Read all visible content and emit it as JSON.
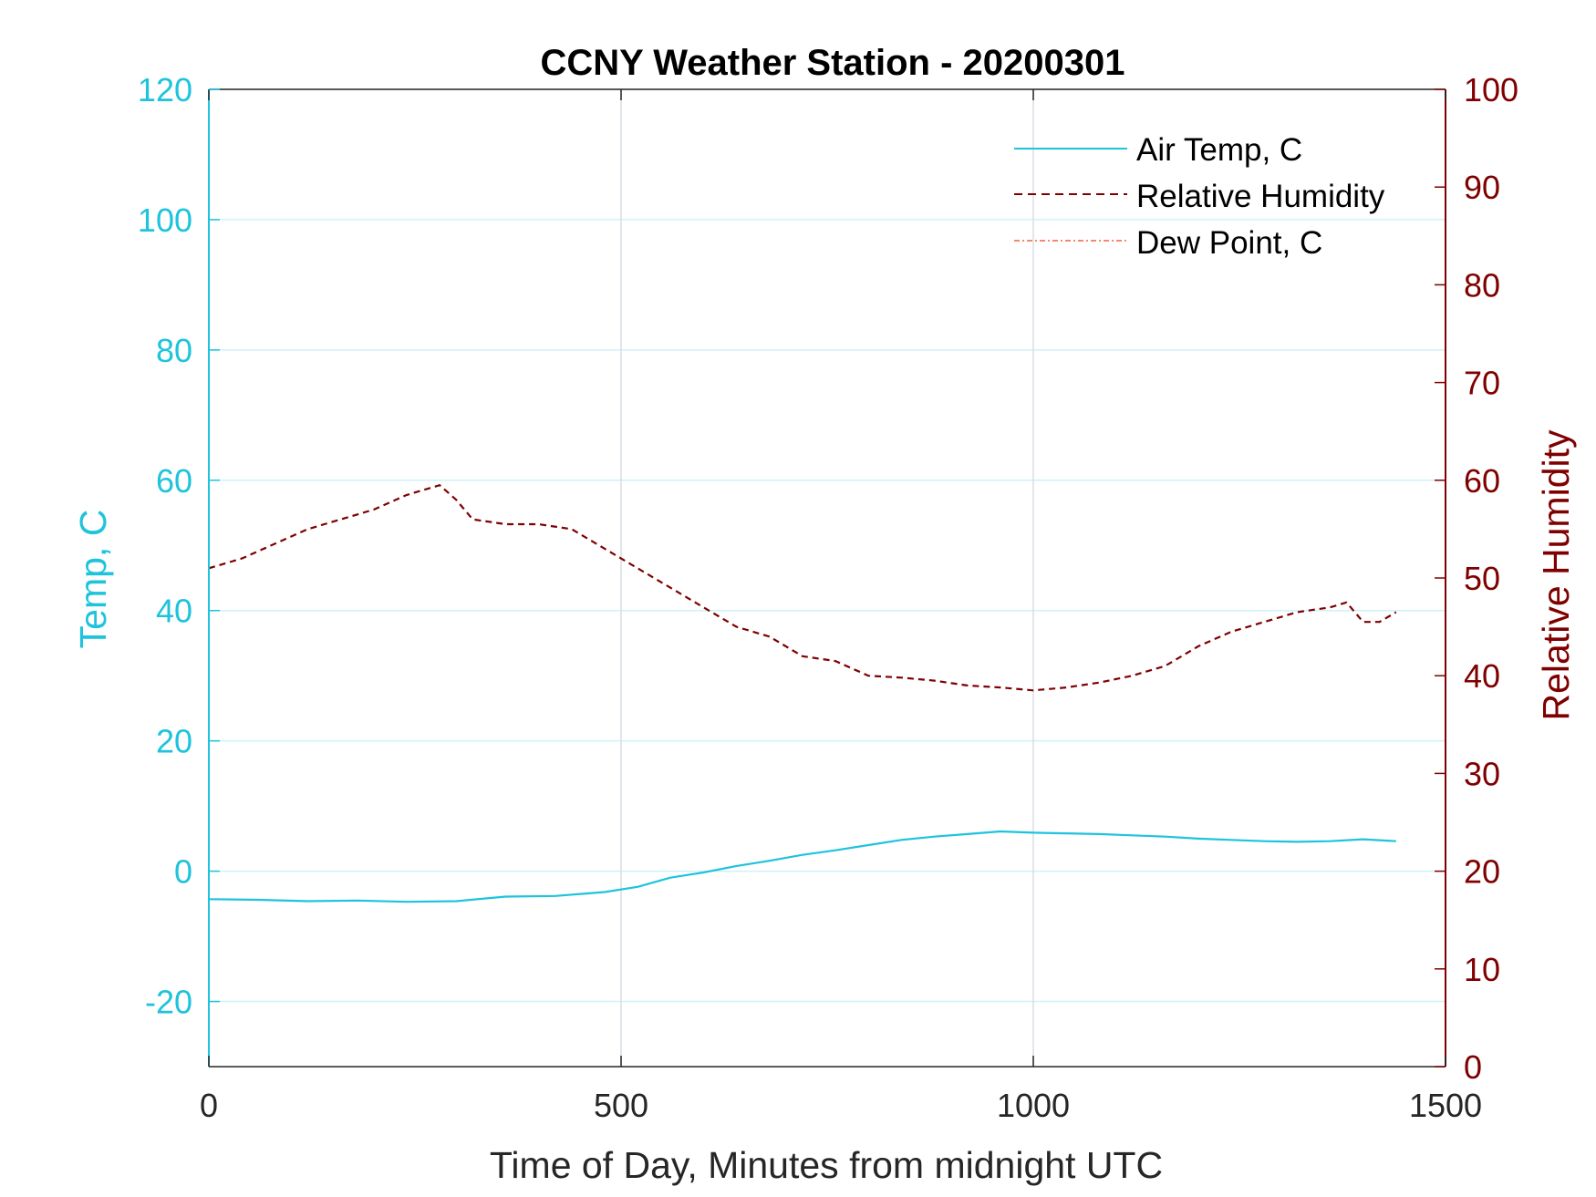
{
  "chart_data": {
    "type": "line",
    "title": "CCNY Weather Station - 20200301",
    "xlabel": "Time of Day, Minutes from midnight UTC",
    "ylabel_left": "Temp, C",
    "ylabel_right": "Relative Humidity",
    "xlim": [
      0,
      1500
    ],
    "ylim_left": [
      -30,
      120
    ],
    "ylim_right": [
      0,
      100
    ],
    "x_ticks": [
      0,
      500,
      1000,
      1500
    ],
    "y_left_ticks": [
      -20,
      0,
      20,
      40,
      60,
      80,
      100,
      120
    ],
    "y_right_ticks": [
      0,
      10,
      20,
      30,
      40,
      50,
      60,
      70,
      80,
      90,
      100
    ],
    "grid": true,
    "legend_position": "top-right",
    "colors": {
      "left_axis": "#1ec3dc",
      "right_axis": "#7f0000",
      "dew_point": "#f0643c",
      "grid_x": "#d5dde6",
      "grid_y": "#cdf2f8"
    },
    "series": [
      {
        "name": "Air Temp, C",
        "axis": "left",
        "style": "solid",
        "x": [
          0,
          60,
          120,
          180,
          240,
          300,
          360,
          420,
          480,
          520,
          560,
          600,
          640,
          680,
          720,
          760,
          800,
          840,
          880,
          920,
          960,
          1000,
          1040,
          1080,
          1120,
          1160,
          1200,
          1240,
          1280,
          1320,
          1360,
          1400,
          1440
        ],
        "values": [
          -4.3,
          -4.4,
          -4.6,
          -4.5,
          -4.7,
          -4.6,
          -3.9,
          -3.8,
          -3.2,
          -2.4,
          -1.0,
          -0.2,
          0.8,
          1.6,
          2.5,
          3.2,
          4.0,
          4.8,
          5.3,
          5.7,
          6.1,
          5.9,
          5.8,
          5.7,
          5.5,
          5.3,
          5.0,
          4.8,
          4.6,
          4.5,
          4.6,
          4.9,
          4.6
        ]
      },
      {
        "name": "Relative Humidity",
        "axis": "right",
        "style": "dashed",
        "x": [
          0,
          40,
          80,
          120,
          160,
          200,
          240,
          280,
          300,
          320,
          360,
          400,
          440,
          480,
          520,
          560,
          600,
          640,
          680,
          720,
          760,
          800,
          840,
          880,
          920,
          960,
          1000,
          1040,
          1080,
          1120,
          1160,
          1200,
          1240,
          1280,
          1320,
          1360,
          1380,
          1400,
          1420,
          1440
        ],
        "values": [
          51,
          52,
          53.5,
          55,
          56,
          57,
          58.5,
          59.5,
          58,
          56,
          55.5,
          55.5,
          55,
          53,
          51,
          49,
          47,
          45,
          44,
          42,
          41.5,
          40,
          39.8,
          39.5,
          39,
          38.8,
          38.5,
          38.8,
          39.3,
          40,
          41,
          43,
          44.5,
          45.5,
          46.5,
          47,
          47.5,
          45.5,
          45.5,
          46.5
        ]
      },
      {
        "name": "Dew Point, C",
        "axis": "left",
        "style": "dash-dot",
        "x": [],
        "values": []
      }
    ]
  }
}
